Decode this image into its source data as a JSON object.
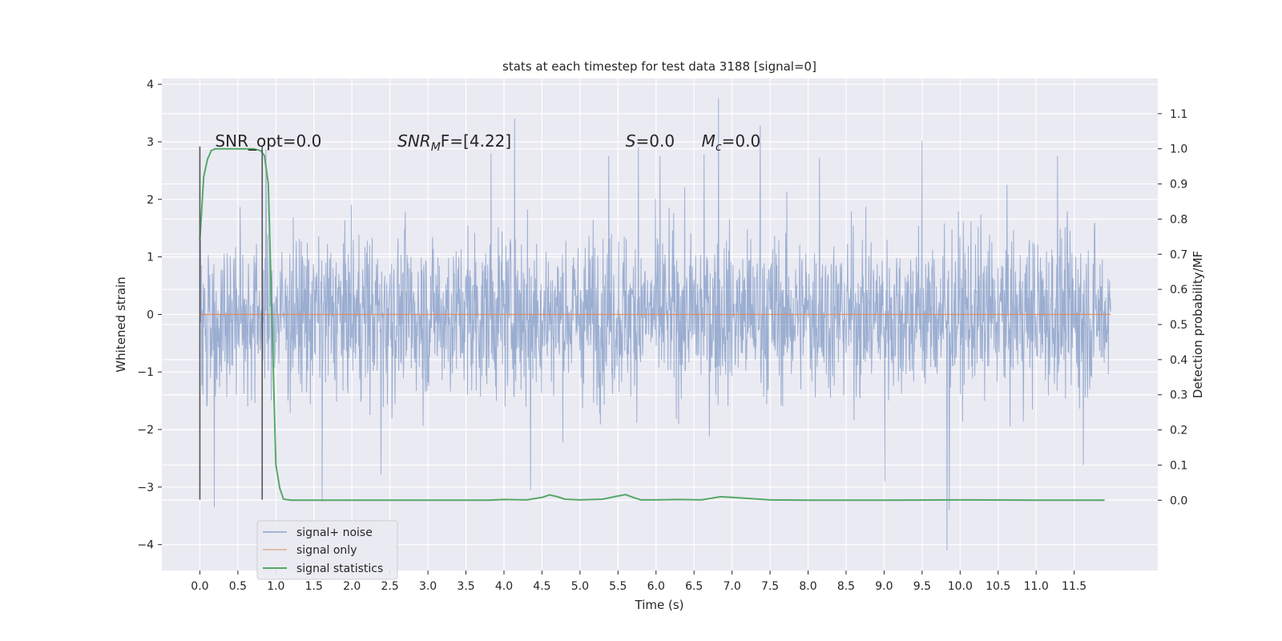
{
  "chart_data": {
    "type": "line",
    "title": "stats at each timestep for test data 3188 [signal=0]",
    "xlabel": "Time (s)",
    "ylabel": "Whitened strain",
    "y2label": "Detection probability/MF",
    "xlim": [
      -0.5,
      12.6
    ],
    "ylim": [
      -4.45,
      4.1
    ],
    "y2lim": [
      -0.2,
      1.2
    ],
    "grid": true,
    "legend_placement": "lower-left",
    "x_ticks": [
      0.0,
      0.5,
      1.0,
      1.5,
      2.0,
      2.5,
      3.0,
      3.5,
      4.0,
      4.5,
      5.0,
      5.5,
      6.0,
      6.5,
      7.0,
      7.5,
      8.0,
      8.5,
      9.0,
      9.5,
      10.0,
      10.5,
      11.0,
      11.5
    ],
    "x_tick_labels": [
      "0.0",
      "0.5",
      "1.0",
      "1.5",
      "2.0",
      "2.5",
      "3.0",
      "3.5",
      "4.0",
      "4.5",
      "5.0",
      "5.5",
      "6.0",
      "6.5",
      "7.0",
      "7.5",
      "8.0",
      "8.5",
      "9.0",
      "9.5",
      "10.0",
      "10.5",
      "11.0",
      "11.5"
    ],
    "y_ticks": [
      4,
      3,
      2,
      1,
      0,
      -1,
      -2,
      -3,
      -4
    ],
    "y_tick_labels": [
      "4",
      "3",
      "2",
      "1",
      "0",
      "−1",
      "−2",
      "−3",
      "−4"
    ],
    "y2_ticks": [
      1.1,
      1.0,
      0.9,
      0.8,
      0.7,
      0.6,
      0.5,
      0.4,
      0.3,
      0.2,
      0.1,
      0.0
    ],
    "y2_tick_labels": [
      "1.1",
      "1.0",
      "0.9",
      "0.8",
      "0.7",
      "0.6",
      "0.5",
      "0.4",
      "0.3",
      "0.2",
      "0.1",
      "0.0"
    ],
    "annotations": [
      {
        "text": "SNR_opt=0.0",
        "x": 0.2,
        "y": 3.0
      },
      {
        "text": "SNR",
        "sub": "M",
        "suffix": "F=[4.22]",
        "italic": true,
        "x": 2.6,
        "y": 3.0
      },
      {
        "text": "S",
        "suffix": "=0.0",
        "italic": true,
        "x": 5.6,
        "y": 3.0
      },
      {
        "text": "M",
        "sub": "c",
        "suffix": "=0.0",
        "italic": true,
        "x": 6.6,
        "y": 3.0
      }
    ],
    "vlines": [
      {
        "x": 0.0,
        "ymin": -3.22,
        "ymax": 2.92
      },
      {
        "x": 0.82,
        "ymin": -3.22,
        "ymax": 2.92
      }
    ],
    "series": [
      {
        "name": "signal+ noise",
        "color": "#4c72b0",
        "axis": "left",
        "x_range": [
          0.0,
          11.98
        ],
        "typical_amplitude": 1.6,
        "min": -4.1,
        "max": 3.76,
        "spikes": [
          {
            "x": 0.19,
            "y": -3.35
          },
          {
            "x": 1.61,
            "y": -3.25
          },
          {
            "x": 4.14,
            "y": 3.4
          },
          {
            "x": 4.35,
            "y": -3.05
          },
          {
            "x": 6.82,
            "y": 3.76
          },
          {
            "x": 7.37,
            "y": 3.28
          },
          {
            "x": 9.5,
            "y": 3.02
          },
          {
            "x": 9.83,
            "y": -4.1
          },
          {
            "x": 9.86,
            "y": -3.4
          },
          {
            "x": 0.87,
            "y": 2.88
          },
          {
            "x": 3.83,
            "y": 2.8
          },
          {
            "x": 5.38,
            "y": 2.75
          },
          {
            "x": 5.77,
            "y": 2.9
          },
          {
            "x": 6.05,
            "y": 2.75
          },
          {
            "x": 6.63,
            "y": 2.78
          },
          {
            "x": 9.01,
            "y": -2.9
          },
          {
            "x": 11.62,
            "y": -2.62
          },
          {
            "x": 11.28,
            "y": 2.75
          },
          {
            "x": 8.15,
            "y": 2.72
          },
          {
            "x": 2.38,
            "y": -2.78
          }
        ]
      },
      {
        "name": "signal only",
        "color": "#dd8452",
        "axis": "left",
        "x": [
          0.0,
          11.98
        ],
        "values": [
          0.0,
          0.0
        ]
      },
      {
        "name": "signal statistics",
        "color": "#55a868",
        "axis": "right",
        "x": [
          0.0,
          0.05,
          0.1,
          0.15,
          0.2,
          0.3,
          0.5,
          0.7,
          0.8,
          0.85,
          0.9,
          0.95,
          1.0,
          1.05,
          1.1,
          1.2,
          2.0,
          3.0,
          3.8,
          4.0,
          4.3,
          4.5,
          4.6,
          4.7,
          4.8,
          5.0,
          5.3,
          5.5,
          5.6,
          5.7,
          5.8,
          6.0,
          6.3,
          6.6,
          6.85,
          7.0,
          7.5,
          8.0,
          9.0,
          10.0,
          11.0,
          11.9
        ],
        "values": [
          0.74,
          0.92,
          0.97,
          0.995,
          1.0,
          1.0,
          1.0,
          1.0,
          0.995,
          0.98,
          0.9,
          0.5,
          0.1,
          0.035,
          0.003,
          0.0,
          0.0,
          0.0,
          0.0,
          0.002,
          0.001,
          0.008,
          0.015,
          0.01,
          0.003,
          0.001,
          0.003,
          0.012,
          0.016,
          0.008,
          0.001,
          0.001,
          0.002,
          0.001,
          0.01,
          0.008,
          0.001,
          0.0,
          0.0,
          0.001,
          0.0,
          0.0
        ]
      }
    ]
  }
}
